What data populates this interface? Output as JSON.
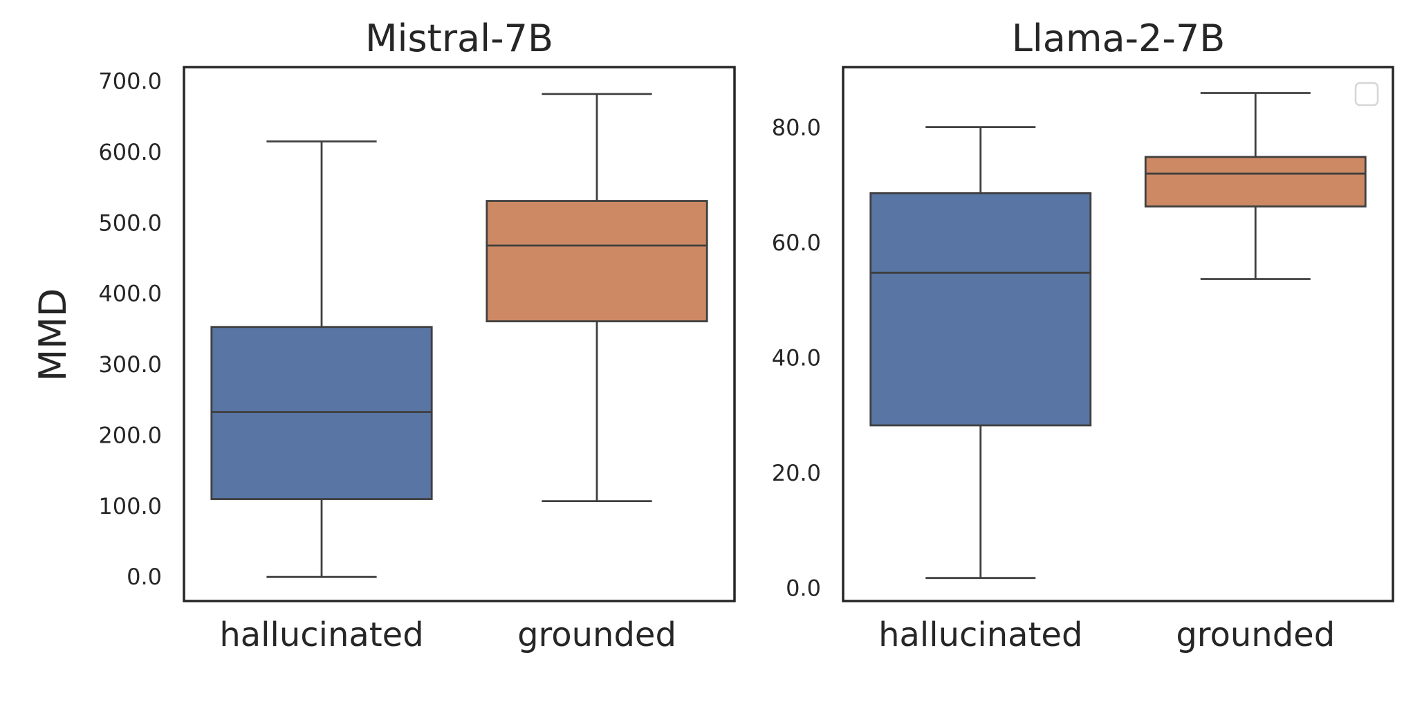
{
  "chart_data": [
    {
      "type": "box",
      "title": "Mistral-7B",
      "ylabel": "MMD",
      "categories": [
        "hallucinated",
        "grounded"
      ],
      "ylim": [
        -34,
        720
      ],
      "yticks": [
        "0.0",
        "100.0",
        "200.0",
        "300.0",
        "400.0",
        "500.0",
        "600.0",
        "700.0"
      ],
      "ytick_values": [
        0,
        100,
        200,
        300,
        400,
        500,
        600,
        700
      ],
      "boxes": [
        {
          "category": "hallucinated",
          "whisker_low": 0,
          "q1": 110,
          "median": 233,
          "q3": 353,
          "whisker_high": 615
        },
        {
          "category": "grounded",
          "whisker_low": 107,
          "q1": 361,
          "median": 468,
          "q3": 531,
          "whisker_high": 682
        }
      ],
      "colors": {
        "hallucinated": "#5875a4",
        "grounded": "#cc8963"
      },
      "legend": false
    },
    {
      "type": "box",
      "title": "Llama-2-7B",
      "ylabel": "",
      "categories": [
        "hallucinated",
        "grounded"
      ],
      "ylim": [
        -2.2,
        90.5
      ],
      "yticks": [
        "0.0",
        "20.0",
        "40.0",
        "60.0",
        "80.0"
      ],
      "ytick_values": [
        0,
        20,
        40,
        60,
        80
      ],
      "boxes": [
        {
          "category": "hallucinated",
          "whisker_low": 1.8,
          "q1": 28.3,
          "median": 54.8,
          "q3": 68.6,
          "whisker_high": 80.1
        },
        {
          "category": "grounded",
          "whisker_low": 53.7,
          "q1": 66.3,
          "median": 72.0,
          "q3": 74.9,
          "whisker_high": 86.0
        }
      ],
      "colors": {
        "hallucinated": "#5875a4",
        "grounded": "#cc8963"
      },
      "legend": "top-right (empty)"
    }
  ]
}
